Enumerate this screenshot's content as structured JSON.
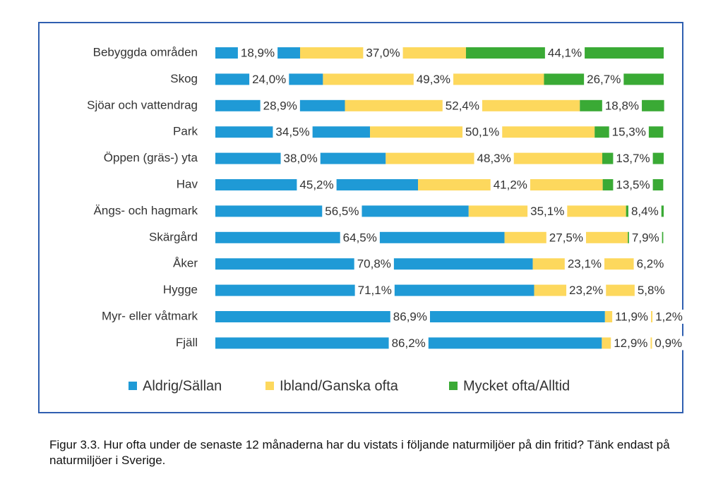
{
  "chart_data": {
    "type": "stacked-bar-horizontal",
    "categories": [
      "Bebyggda områden",
      "Skog",
      "Sjöar och vattendrag",
      "Park",
      "Öppen (gräs-) yta",
      "Hav",
      "Ängs- och hagmark",
      "Skärgård",
      "Åker",
      "Hygge",
      "Myr- eller våtmark",
      "Fjäll"
    ],
    "xlim": [
      0,
      100
    ],
    "legend": "bottom",
    "series": [
      {
        "name": "Aldrig/Sällan",
        "color": "#1f9ad6",
        "values": [
          18.9,
          24.0,
          28.9,
          34.5,
          38.0,
          45.2,
          56.5,
          64.5,
          70.8,
          71.1,
          86.9,
          86.2
        ],
        "value_labels": [
          "18,9%",
          "24,0%",
          "28,9%",
          "34,5%",
          "38,0%",
          "45,2%",
          "56,5%",
          "64,5%",
          "70,8%",
          "71,1%",
          "86,9%",
          "86,2%"
        ]
      },
      {
        "name": "Ibland/Ganska ofta",
        "color": "#fdd85d",
        "values": [
          37.0,
          49.3,
          52.4,
          50.1,
          48.3,
          41.2,
          35.1,
          27.5,
          23.1,
          23.2,
          11.9,
          12.9
        ],
        "value_labels": [
          "37,0%",
          "49,3%",
          "52,4%",
          "50,1%",
          "48,3%",
          "41,2%",
          "35,1%",
          "27,5%",
          "23,1%",
          "23,2%",
          "11,9%",
          "12,9%"
        ]
      },
      {
        "name": "Mycket ofta/Alltid",
        "color": "#3aaa35",
        "values": [
          44.1,
          26.7,
          18.8,
          15.3,
          13.7,
          13.5,
          8.4,
          7.9,
          6.2,
          5.8,
          1.2,
          0.9
        ],
        "value_labels": [
          "44,1%",
          "26,7%",
          "18,8%",
          "15,3%",
          "13,7%",
          "13,5%",
          "8,4%",
          "7,9%",
          "6,2%",
          "5,8%",
          "1,2%",
          "0,9%"
        ]
      }
    ]
  },
  "caption": "Figur 3.3. Hur ofta under de senaste 12 månaderna har du vistats i följande naturmiljöer på din fritid? Tänk endast på naturmiljöer i Sverige."
}
